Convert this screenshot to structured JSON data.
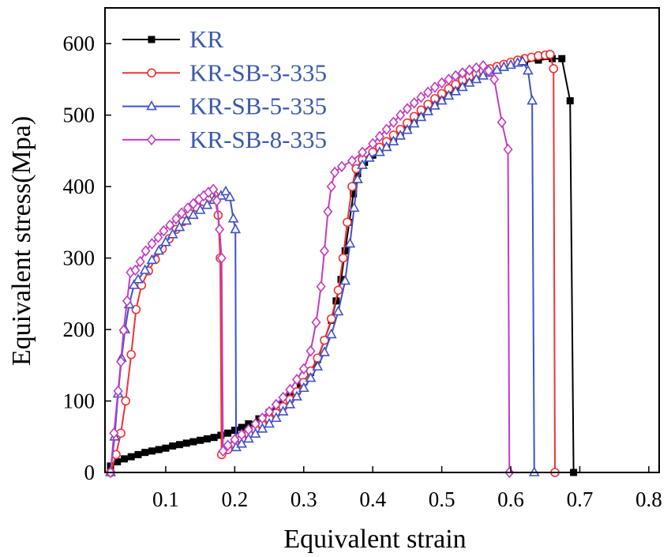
{
  "chart_data": {
    "type": "line",
    "xlabel": "Equivalent strain",
    "ylabel": "Equivalent stress(Mpa)",
    "xlim": [
      0.012,
      0.815
    ],
    "ylim": [
      0,
      650
    ],
    "x_ticks": [
      "0.1",
      "0.2",
      "0.3",
      "0.4",
      "0.5",
      "0.6",
      "0.7",
      "0.8"
    ],
    "y_ticks": [
      "0",
      "100",
      "200",
      "300",
      "400",
      "500",
      "600"
    ],
    "grid": false,
    "legend": {
      "placement": "top-left",
      "text_color": "#3a5ba9"
    },
    "series": [
      {
        "name": "KR",
        "color": "#000000",
        "marker": "square",
        "points": [
          [
            0.02,
            9
          ],
          [
            0.03,
            15
          ],
          [
            0.04,
            19
          ],
          [
            0.05,
            22
          ],
          [
            0.06,
            25
          ],
          [
            0.07,
            28
          ],
          [
            0.08,
            30
          ],
          [
            0.09,
            32
          ],
          [
            0.1,
            34
          ],
          [
            0.11,
            37
          ],
          [
            0.12,
            39
          ],
          [
            0.13,
            41
          ],
          [
            0.14,
            43
          ],
          [
            0.15,
            45
          ],
          [
            0.16,
            47
          ],
          [
            0.17,
            49
          ],
          [
            0.18,
            52
          ],
          [
            0.19,
            55
          ],
          [
            0.2,
            59
          ],
          [
            0.21,
            63
          ],
          [
            0.22,
            68
          ],
          [
            0.235,
            75
          ],
          [
            0.25,
            84
          ],
          [
            0.265,
            95
          ],
          [
            0.28,
            108
          ],
          [
            0.295,
            122
          ],
          [
            0.31,
            140
          ],
          [
            0.32,
            158
          ],
          [
            0.33,
            185
          ],
          [
            0.34,
            213
          ],
          [
            0.347,
            240
          ],
          [
            0.354,
            270
          ],
          [
            0.36,
            310
          ],
          [
            0.366,
            350
          ],
          [
            0.372,
            390
          ],
          [
            0.378,
            418
          ],
          [
            0.388,
            434
          ],
          [
            0.4,
            444
          ],
          [
            0.41,
            452
          ],
          [
            0.42,
            459
          ],
          [
            0.43,
            466
          ],
          [
            0.44,
            474
          ],
          [
            0.45,
            482
          ],
          [
            0.46,
            490
          ],
          [
            0.47,
            499
          ],
          [
            0.48,
            508
          ],
          [
            0.49,
            517
          ],
          [
            0.5,
            525
          ],
          [
            0.51,
            532
          ],
          [
            0.52,
            539
          ],
          [
            0.53,
            545
          ],
          [
            0.54,
            551
          ],
          [
            0.55,
            556
          ],
          [
            0.56,
            560
          ],
          [
            0.57,
            564
          ],
          [
            0.58,
            567
          ],
          [
            0.6,
            571
          ],
          [
            0.62,
            574
          ],
          [
            0.64,
            577
          ],
          [
            0.66,
            579
          ],
          [
            0.674,
            579
          ],
          [
            0.686,
            520
          ],
          [
            0.691,
            0
          ]
        ]
      },
      {
        "name": "KR-SB-3-335",
        "color": "#f03232",
        "marker": "circle",
        "points": [
          [
            0.02,
            0
          ],
          [
            0.028,
            25
          ],
          [
            0.035,
            55
          ],
          [
            0.042,
            100
          ],
          [
            0.05,
            165
          ],
          [
            0.057,
            228
          ],
          [
            0.065,
            262
          ],
          [
            0.075,
            282
          ],
          [
            0.085,
            298
          ],
          [
            0.095,
            313
          ],
          [
            0.105,
            327
          ],
          [
            0.115,
            340
          ],
          [
            0.125,
            351
          ],
          [
            0.135,
            362
          ],
          [
            0.145,
            371
          ],
          [
            0.155,
            379
          ],
          [
            0.163,
            385
          ],
          [
            0.17,
            388
          ],
          [
            0.176,
            360
          ],
          [
            0.179,
            300
          ],
          [
            0.181,
            25
          ],
          [
            0.19,
            32
          ],
          [
            0.2,
            40
          ],
          [
            0.21,
            47
          ],
          [
            0.22,
            54
          ],
          [
            0.23,
            60
          ],
          [
            0.24,
            67
          ],
          [
            0.25,
            75
          ],
          [
            0.26,
            83
          ],
          [
            0.27,
            92
          ],
          [
            0.28,
            102
          ],
          [
            0.29,
            113
          ],
          [
            0.3,
            126
          ],
          [
            0.31,
            142
          ],
          [
            0.32,
            160
          ],
          [
            0.33,
            185
          ],
          [
            0.34,
            215
          ],
          [
            0.35,
            255
          ],
          [
            0.357,
            300
          ],
          [
            0.363,
            350
          ],
          [
            0.37,
            400
          ],
          [
            0.376,
            425
          ],
          [
            0.385,
            438
          ],
          [
            0.4,
            448
          ],
          [
            0.41,
            455
          ],
          [
            0.42,
            463
          ],
          [
            0.43,
            472
          ],
          [
            0.44,
            480
          ],
          [
            0.45,
            489
          ],
          [
            0.46,
            498
          ],
          [
            0.47,
            507
          ],
          [
            0.48,
            515
          ],
          [
            0.49,
            523
          ],
          [
            0.5,
            530
          ],
          [
            0.51,
            537
          ],
          [
            0.52,
            543
          ],
          [
            0.53,
            549
          ],
          [
            0.54,
            554
          ],
          [
            0.55,
            558
          ],
          [
            0.56,
            562
          ],
          [
            0.57,
            565
          ],
          [
            0.58,
            568
          ],
          [
            0.59,
            571
          ],
          [
            0.6,
            574
          ],
          [
            0.61,
            577
          ],
          [
            0.62,
            579
          ],
          [
            0.63,
            581
          ],
          [
            0.64,
            583
          ],
          [
            0.65,
            584
          ],
          [
            0.657,
            585
          ],
          [
            0.662,
            565
          ],
          [
            0.664,
            0
          ]
        ]
      },
      {
        "name": "KR-SB-5-335",
        "color": "#3f51c7",
        "marker": "triangle",
        "points": [
          [
            0.02,
            0
          ],
          [
            0.026,
            50
          ],
          [
            0.031,
            110
          ],
          [
            0.036,
            160
          ],
          [
            0.041,
            200
          ],
          [
            0.047,
            235
          ],
          [
            0.054,
            262
          ],
          [
            0.06,
            270
          ],
          [
            0.07,
            283
          ],
          [
            0.08,
            297
          ],
          [
            0.09,
            310
          ],
          [
            0.1,
            322
          ],
          [
            0.11,
            333
          ],
          [
            0.12,
            343
          ],
          [
            0.13,
            352
          ],
          [
            0.14,
            360
          ],
          [
            0.15,
            367
          ],
          [
            0.16,
            374
          ],
          [
            0.17,
            381
          ],
          [
            0.18,
            387
          ],
          [
            0.187,
            393
          ],
          [
            0.193,
            385
          ],
          [
            0.198,
            355
          ],
          [
            0.201,
            340
          ],
          [
            0.202,
            35
          ],
          [
            0.21,
            40
          ],
          [
            0.22,
            47
          ],
          [
            0.23,
            54
          ],
          [
            0.24,
            61
          ],
          [
            0.25,
            68
          ],
          [
            0.26,
            76
          ],
          [
            0.27,
            85
          ],
          [
            0.28,
            95
          ],
          [
            0.29,
            106
          ],
          [
            0.3,
            118
          ],
          [
            0.31,
            132
          ],
          [
            0.32,
            148
          ],
          [
            0.33,
            168
          ],
          [
            0.34,
            193
          ],
          [
            0.35,
            225
          ],
          [
            0.36,
            268
          ],
          [
            0.367,
            320
          ],
          [
            0.373,
            370
          ],
          [
            0.378,
            410
          ],
          [
            0.385,
            430
          ],
          [
            0.395,
            440
          ],
          [
            0.41,
            448
          ],
          [
            0.42,
            455
          ],
          [
            0.43,
            463
          ],
          [
            0.44,
            471
          ],
          [
            0.45,
            479
          ],
          [
            0.46,
            488
          ],
          [
            0.47,
            497
          ],
          [
            0.48,
            505
          ],
          [
            0.49,
            513
          ],
          [
            0.5,
            520
          ],
          [
            0.51,
            527
          ],
          [
            0.52,
            533
          ],
          [
            0.53,
            539
          ],
          [
            0.54,
            545
          ],
          [
            0.55,
            550
          ],
          [
            0.56,
            555
          ],
          [
            0.57,
            559
          ],
          [
            0.58,
            563
          ],
          [
            0.59,
            567
          ],
          [
            0.6,
            570
          ],
          [
            0.61,
            573
          ],
          [
            0.617,
            575
          ],
          [
            0.625,
            562
          ],
          [
            0.631,
            520
          ],
          [
            0.634,
            0
          ]
        ]
      },
      {
        "name": "KR-SB-8-335",
        "color": "#c23cc2",
        "marker": "diamond",
        "points": [
          [
            0.02,
            0
          ],
          [
            0.025,
            55
          ],
          [
            0.031,
            114
          ],
          [
            0.035,
            155
          ],
          [
            0.039,
            199
          ],
          [
            0.044,
            240
          ],
          [
            0.049,
            280
          ],
          [
            0.056,
            283
          ],
          [
            0.063,
            295
          ],
          [
            0.071,
            310
          ],
          [
            0.08,
            320
          ],
          [
            0.089,
            329
          ],
          [
            0.097,
            338
          ],
          [
            0.106,
            346
          ],
          [
            0.115,
            355
          ],
          [
            0.123,
            363
          ],
          [
            0.132,
            370
          ],
          [
            0.14,
            376
          ],
          [
            0.148,
            382
          ],
          [
            0.155,
            387
          ],
          [
            0.162,
            392
          ],
          [
            0.169,
            396
          ],
          [
            0.174,
            380
          ],
          [
            0.178,
            340
          ],
          [
            0.181,
            300
          ],
          [
            0.183,
            30
          ],
          [
            0.19,
            38
          ],
          [
            0.2,
            46
          ],
          [
            0.21,
            53
          ],
          [
            0.22,
            60
          ],
          [
            0.23,
            68
          ],
          [
            0.24,
            76
          ],
          [
            0.25,
            85
          ],
          [
            0.26,
            95
          ],
          [
            0.27,
            105
          ],
          [
            0.28,
            116
          ],
          [
            0.29,
            130
          ],
          [
            0.3,
            145
          ],
          [
            0.31,
            170
          ],
          [
            0.318,
            210
          ],
          [
            0.325,
            260
          ],
          [
            0.33,
            310
          ],
          [
            0.335,
            365
          ],
          [
            0.34,
            400
          ],
          [
            0.345,
            420
          ],
          [
            0.355,
            428
          ],
          [
            0.37,
            436
          ],
          [
            0.385,
            448
          ],
          [
            0.4,
            460
          ],
          [
            0.41,
            470
          ],
          [
            0.42,
            480
          ],
          [
            0.43,
            490
          ],
          [
            0.44,
            500
          ],
          [
            0.45,
            509
          ],
          [
            0.46,
            517
          ],
          [
            0.47,
            525
          ],
          [
            0.48,
            532
          ],
          [
            0.49,
            539
          ],
          [
            0.5,
            545
          ],
          [
            0.51,
            550
          ],
          [
            0.52,
            555
          ],
          [
            0.53,
            559
          ],
          [
            0.54,
            563
          ],
          [
            0.55,
            566
          ],
          [
            0.56,
            569
          ],
          [
            0.568,
            562
          ],
          [
            0.576,
            550
          ],
          [
            0.587,
            490
          ],
          [
            0.596,
            452
          ],
          [
            0.598,
            0
          ]
        ]
      }
    ]
  }
}
